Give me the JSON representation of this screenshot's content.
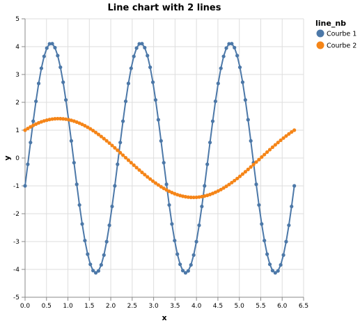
{
  "chart_data": {
    "type": "line",
    "title": "Line chart with 2 lines",
    "xlabel": "x",
    "ylabel": "y",
    "xlim": [
      0,
      6.5
    ],
    "ylim": [
      -5,
      5
    ],
    "x_ticks": [
      "0.0",
      "0.5",
      "1.0",
      "1.5",
      "2.0",
      "2.5",
      "3.0",
      "3.5",
      "4.0",
      "4.5",
      "5.0",
      "5.5",
      "6.0",
      "6.5"
    ],
    "y_ticks": [
      "-5",
      "-4",
      "-3",
      "-2",
      "-1",
      "0",
      "1",
      "2",
      "3",
      "4",
      "5"
    ],
    "grid": true,
    "legend": {
      "title": "line_nb",
      "placement": "top-right"
    },
    "series": [
      {
        "name": "Courbe 1",
        "color": "#4c78a8",
        "formula": "y = 4*sin(3x) - cos(3x)",
        "x_start": 0,
        "x_end": 6.2832,
        "n_points": 100
      },
      {
        "name": "Courbe 2",
        "color": "#f58518",
        "formula": "y = sin(x) + cos(x)",
        "x_start": 0,
        "x_end": 6.2832,
        "n_points": 100
      }
    ]
  }
}
